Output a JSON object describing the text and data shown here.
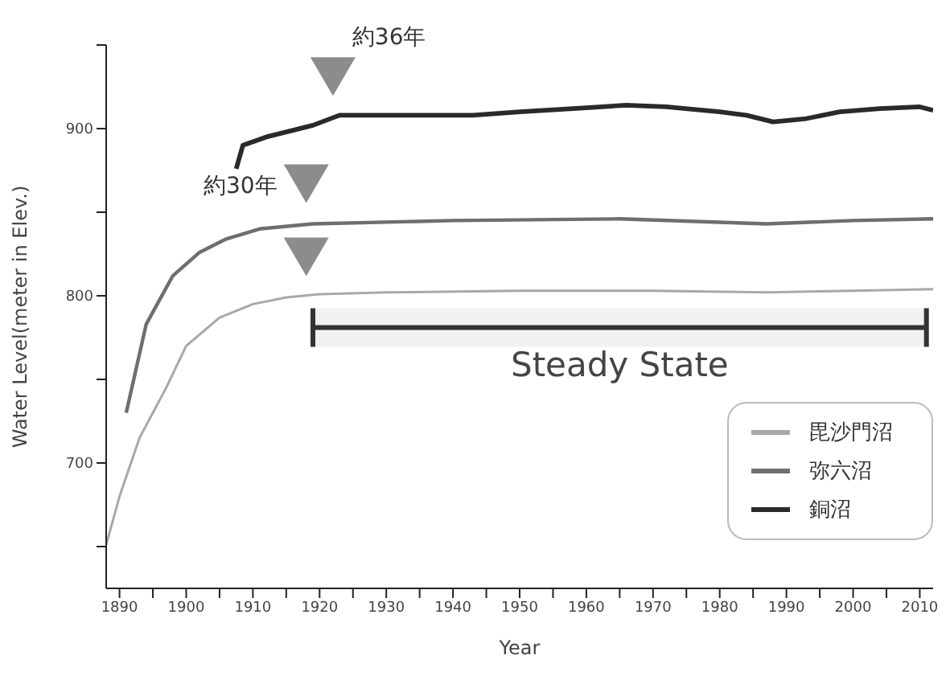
{
  "chart_data": {
    "type": "line",
    "xlabel": "Year",
    "ylabel": "Water Level(meter in Elev.)",
    "xlim": [
      1888,
      2012
    ],
    "ylim": [
      625,
      950
    ],
    "xticks": [
      1890,
      {
        "value": 1895,
        "label": null
      },
      1900,
      {
        "value": 1905,
        "label": null
      },
      1910,
      {
        "value": 1915,
        "label": null
      },
      1920,
      {
        "value": 1925,
        "label": null
      },
      1930,
      {
        "value": 1935,
        "label": null
      },
      1940,
      {
        "value": 1945,
        "label": null
      },
      1950,
      {
        "value": 1955,
        "label": null
      },
      1960,
      {
        "value": 1965,
        "label": null
      },
      1970,
      {
        "value": 1975,
        "label": null
      },
      1980,
      {
        "value": 1985,
        "label": null
      },
      1990,
      {
        "value": 1995,
        "label": null
      },
      2000,
      {
        "value": 2005,
        "label": null
      },
      2010
    ],
    "yticks": [
      {
        "value": 650,
        "label": null
      },
      700,
      {
        "value": 750,
        "label": null
      },
      800,
      {
        "value": 850,
        "label": null
      },
      900,
      {
        "value": 950,
        "label": null
      }
    ],
    "series": [
      {
        "name": "毘沙門沼",
        "color": "#a8a8a8",
        "x": [
          1888,
          1890,
          1893,
          1897,
          1900,
          1905,
          1910,
          1915,
          1920,
          1930,
          1950,
          1970,
          1987,
          2000,
          2012
        ],
        "values": [
          651,
          680,
          715,
          745,
          770,
          787,
          795,
          799,
          801,
          802,
          803,
          803,
          802,
          803,
          804
        ]
      },
      {
        "name": "弥六沼",
        "color": "#6e6e6e",
        "x": [
          1891,
          1894,
          1898,
          1902,
          1906,
          1911,
          1919,
          1940,
          1965,
          1987,
          2000,
          2012
        ],
        "values": [
          730,
          783,
          812,
          826,
          834,
          840,
          843,
          845,
          846,
          843,
          845,
          846
        ]
      },
      {
        "name": "銅沼",
        "color": "#2a2a2a",
        "x": [
          1907.5,
          1908.5,
          1912,
          1916,
          1919,
          1923,
          1935,
          1943,
          1950,
          1958,
          1966,
          1972,
          1980,
          1984,
          1988,
          1993,
          1998,
          2004,
          2010,
          2012
        ],
        "values": [
          876,
          890,
          895,
          899,
          902,
          908,
          908,
          908,
          910,
          912,
          914,
          913,
          910,
          908,
          904,
          906,
          910,
          912,
          913,
          911
        ]
      }
    ],
    "annotations": [
      {
        "text": "約36年",
        "x": 1922,
        "y": 908
      },
      {
        "text": "約30年",
        "x": 1918,
        "y": 844
      }
    ],
    "bands": [
      {
        "axis": "x",
        "from": 1919,
        "to": 2011,
        "label": "Steady State",
        "color": "#333333"
      }
    ],
    "legend": "bottom right",
    "marker": "none",
    "line_style": "solid",
    "grid": false
  }
}
